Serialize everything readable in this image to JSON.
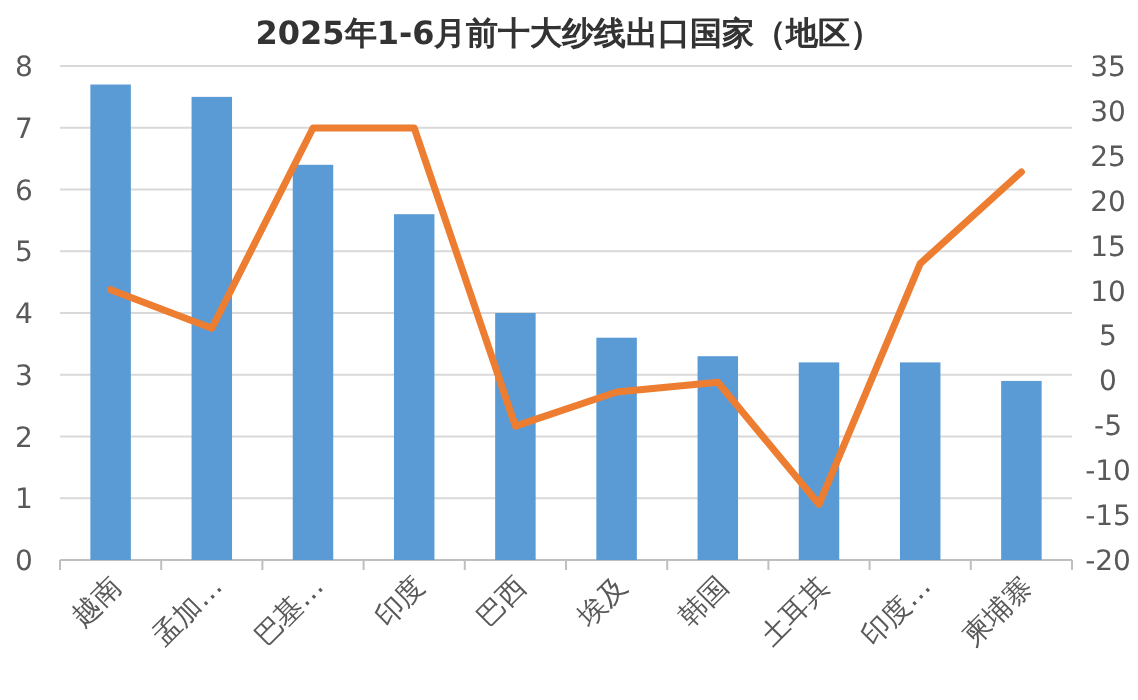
{
  "chart_data": {
    "type": "bar",
    "title": "2025年1-6月前十大纱线出口国家（地区）",
    "categories": [
      "越南",
      "孟加…",
      "巴基…",
      "印度",
      "巴西",
      "埃及",
      "韩国",
      "土耳其",
      "印度…",
      "柬埔寨"
    ],
    "series": [
      {
        "color": "#5b9bd5",
        "values": [
          7.7,
          7.5,
          6.4,
          5.6,
          4.0,
          3.6,
          3.3,
          3.2,
          3.2,
          2.9
        ]
      },
      {
        "type": "line",
        "axis": "y2",
        "color": "#ed7d31",
        "values": [
          10.1,
          5.8,
          28.1,
          28.1,
          -5.1,
          -1.3,
          -0.2,
          -13.8,
          13.0,
          23.2
        ]
      }
    ],
    "ylim": [
      0,
      8
    ],
    "yticks": [
      0,
      1,
      2,
      3,
      4,
      5,
      6,
      7,
      8
    ],
    "y2lim": [
      -20,
      35
    ],
    "y2ticks": [
      -20,
      -15,
      -10,
      -5,
      0,
      5,
      10,
      15,
      20,
      25,
      30,
      35
    ],
    "grid": "y"
  }
}
